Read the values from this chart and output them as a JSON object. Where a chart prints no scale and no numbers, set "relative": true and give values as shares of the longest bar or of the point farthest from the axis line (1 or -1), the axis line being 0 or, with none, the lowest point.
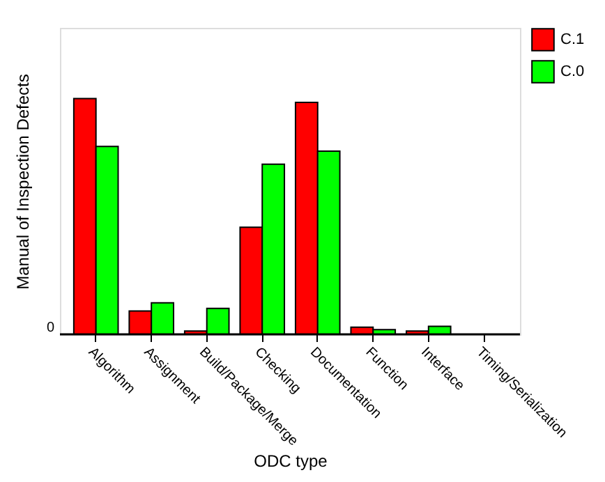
{
  "chart_data": {
    "type": "bar",
    "relative": true,
    "xlabel": "ODC type",
    "ylabel": "Manual of Inspection Defects",
    "categories": [
      "Algorithm",
      "Assignment",
      "Build/Package/Merge",
      "Checking",
      "Documentation",
      "Function",
      "Interface",
      "Timing/Serialization"
    ],
    "series": [
      {
        "name": "C.1",
        "color": "#ff0000",
        "values": [
          1,
          0.099,
          0.014,
          0.454,
          0.984,
          0.03,
          0.014,
          null
        ]
      },
      {
        "name": "C.0",
        "color": "#00ff00",
        "values": [
          0.797,
          0.134,
          0.11,
          0.722,
          0.777,
          0.02,
          0.034,
          null
        ]
      }
    ],
    "annotations": [
      "0"
    ],
    "legend": "right",
    "grid": false
  }
}
